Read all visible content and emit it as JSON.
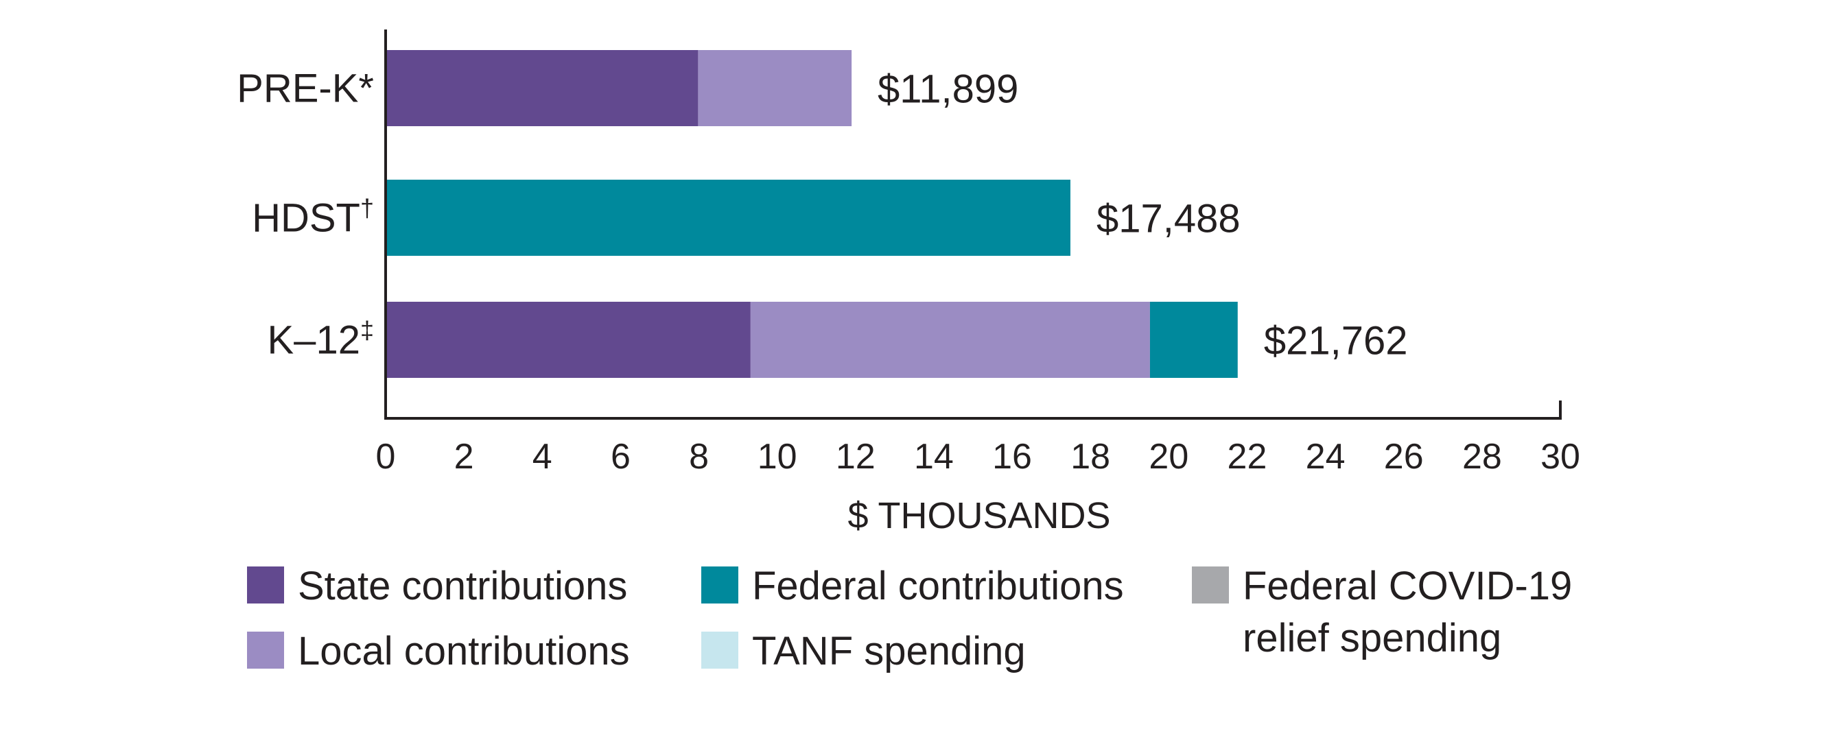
{
  "chart_data": {
    "type": "bar",
    "orientation": "horizontal",
    "stacked": true,
    "title": "",
    "xlabel": "$ THOUSANDS",
    "ylabel": "",
    "xlim": [
      0,
      30
    ],
    "xticks": [
      "0",
      "2",
      "4",
      "6",
      "8",
      "10",
      "12",
      "14",
      "16",
      "18",
      "20",
      "22",
      "24",
      "26",
      "28",
      "30"
    ],
    "grid": false,
    "categories": [
      {
        "label": "PRE-K",
        "mark": "*"
      },
      {
        "label": "HDST",
        "mark": "†"
      },
      {
        "label": "K–12",
        "mark": "‡"
      }
    ],
    "series": [
      {
        "name": "State contributions",
        "color": "#62498f",
        "values": [
          7.98,
          0,
          9.32
        ]
      },
      {
        "name": "Local contributions",
        "color": "#9b8cc3",
        "values": [
          3.92,
          0,
          10.2
        ]
      },
      {
        "name": "Federal contributions",
        "color": "#00899c",
        "values": [
          0,
          17.488,
          2.24
        ]
      },
      {
        "name": "TANF spending",
        "color": "#c6e6ee",
        "values": [
          0,
          0,
          0
        ]
      },
      {
        "name": "Federal COVID-19 relief spending",
        "color": "#a7a8ab",
        "values": [
          0,
          0,
          0
        ]
      }
    ],
    "totals": [
      11.899,
      17.488,
      21.762
    ],
    "total_labels": [
      "$11,899",
      "$17,488",
      "$21,762"
    ],
    "legend": {
      "placement": "bottom",
      "items": [
        {
          "lines": [
            "State contributions"
          ],
          "color": "#62498f"
        },
        {
          "lines": [
            "Local contributions"
          ],
          "color": "#9b8cc3"
        },
        {
          "lines": [
            "Federal contributions"
          ],
          "color": "#00899c"
        },
        {
          "lines": [
            "TANF spending"
          ],
          "color": "#c6e6ee"
        },
        {
          "lines": [
            "Federal COVID-19",
            "relief spending"
          ],
          "color": "#a7a8ab"
        }
      ]
    }
  }
}
